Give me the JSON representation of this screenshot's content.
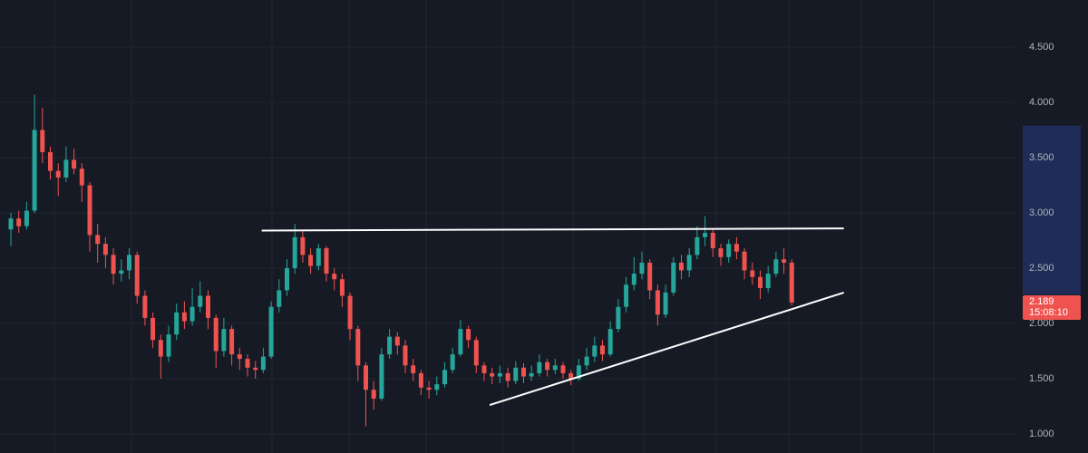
{
  "chart_data": {
    "type": "candlestick",
    "open": [
      2.85,
      2.95,
      2.88,
      3.02,
      3.75,
      3.55,
      3.38,
      3.32,
      3.48,
      3.4,
      3.25,
      2.8,
      2.72,
      2.62,
      2.45,
      2.48,
      2.62,
      2.25,
      2.05,
      1.85,
      1.7,
      1.9,
      2.1,
      2.02,
      2.15,
      2.25,
      2.05,
      1.75,
      1.95,
      1.72,
      1.68,
      1.6,
      1.58,
      1.7,
      2.15,
      2.3,
      2.5,
      2.78,
      2.62,
      2.52,
      2.68,
      2.45,
      2.4,
      2.25,
      1.95,
      1.62,
      1.4,
      1.32,
      1.72,
      1.88,
      1.8,
      1.62,
      1.55,
      1.42,
      1.4,
      1.45,
      1.58,
      1.72,
      1.95,
      1.85,
      1.62,
      1.55,
      1.52,
      1.55,
      1.48,
      1.6,
      1.52,
      1.55,
      1.65,
      1.58,
      1.62,
      1.55,
      1.5,
      1.62,
      1.7,
      1.8,
      1.72,
      1.95,
      2.15,
      2.35,
      2.45,
      2.55,
      2.3,
      2.08,
      2.28,
      2.55,
      2.48,
      2.62,
      2.78,
      2.82,
      2.68,
      2.6,
      2.72,
      2.65,
      2.48,
      2.42,
      2.32,
      2.45,
      2.58,
      2.55
    ],
    "high": [
      3.0,
      3.02,
      3.1,
      4.07,
      3.95,
      3.6,
      3.45,
      3.6,
      3.58,
      3.45,
      3.28,
      2.9,
      2.78,
      2.68,
      2.58,
      2.68,
      2.65,
      2.3,
      2.1,
      1.9,
      1.98,
      2.18,
      2.2,
      2.32,
      2.38,
      2.3,
      2.08,
      2.05,
      1.98,
      1.78,
      1.72,
      1.66,
      1.78,
      2.2,
      2.4,
      2.58,
      2.9,
      2.85,
      2.68,
      2.72,
      2.7,
      2.5,
      2.45,
      2.28,
      1.98,
      1.65,
      1.48,
      1.78,
      1.95,
      1.92,
      1.85,
      1.68,
      1.58,
      1.48,
      1.52,
      1.65,
      1.78,
      2.03,
      1.98,
      1.88,
      1.65,
      1.6,
      1.62,
      1.6,
      1.66,
      1.64,
      1.62,
      1.72,
      1.68,
      1.68,
      1.65,
      1.58,
      1.68,
      1.78,
      1.88,
      1.85,
      2.02,
      2.22,
      2.42,
      2.6,
      2.65,
      2.58,
      2.35,
      2.35,
      2.6,
      2.62,
      2.68,
      2.88,
      2.97,
      2.85,
      2.72,
      2.76,
      2.78,
      2.68,
      2.55,
      2.48,
      2.52,
      2.65,
      2.68,
      2.58
    ],
    "low": [
      2.7,
      2.82,
      2.85,
      3.0,
      3.45,
      3.3,
      3.15,
      3.28,
      3.35,
      3.1,
      2.65,
      2.55,
      2.5,
      2.35,
      2.38,
      2.4,
      2.18,
      1.98,
      1.78,
      1.5,
      1.65,
      1.85,
      1.95,
      1.98,
      2.1,
      1.95,
      1.6,
      1.7,
      1.62,
      1.58,
      1.52,
      1.5,
      1.55,
      1.68,
      2.1,
      2.25,
      2.45,
      2.55,
      2.45,
      2.48,
      2.38,
      2.3,
      2.15,
      1.85,
      1.48,
      1.07,
      1.22,
      1.3,
      1.68,
      1.72,
      1.55,
      1.48,
      1.35,
      1.32,
      1.35,
      1.42,
      1.55,
      1.7,
      1.78,
      1.55,
      1.48,
      1.45,
      1.46,
      1.42,
      1.45,
      1.46,
      1.48,
      1.52,
      1.52,
      1.54,
      1.5,
      1.44,
      1.48,
      1.58,
      1.65,
      1.66,
      1.7,
      1.92,
      2.1,
      2.3,
      2.4,
      2.22,
      1.98,
      2.05,
      2.25,
      2.4,
      2.42,
      2.58,
      2.7,
      2.6,
      2.52,
      2.55,
      2.58,
      2.4,
      2.35,
      2.22,
      2.28,
      2.42,
      2.45,
      2.16
    ],
    "close": [
      2.95,
      2.88,
      3.02,
      3.75,
      3.55,
      3.38,
      3.32,
      3.48,
      3.4,
      3.25,
      2.8,
      2.72,
      2.62,
      2.45,
      2.48,
      2.62,
      2.25,
      2.05,
      1.85,
      1.7,
      1.9,
      2.1,
      2.02,
      2.15,
      2.25,
      2.05,
      1.75,
      1.95,
      1.72,
      1.68,
      1.6,
      1.58,
      1.7,
      2.15,
      2.3,
      2.5,
      2.78,
      2.62,
      2.52,
      2.68,
      2.45,
      2.4,
      2.25,
      1.95,
      1.62,
      1.4,
      1.32,
      1.72,
      1.88,
      1.8,
      1.62,
      1.55,
      1.42,
      1.4,
      1.45,
      1.58,
      1.72,
      1.95,
      1.85,
      1.62,
      1.55,
      1.52,
      1.55,
      1.48,
      1.6,
      1.52,
      1.55,
      1.65,
      1.58,
      1.62,
      1.55,
      1.5,
      1.62,
      1.7,
      1.8,
      1.72,
      1.95,
      2.15,
      2.35,
      2.45,
      2.55,
      2.3,
      2.08,
      2.28,
      2.55,
      2.48,
      2.62,
      2.78,
      2.82,
      2.68,
      2.6,
      2.72,
      2.65,
      2.48,
      2.42,
      2.32,
      2.45,
      2.58,
      2.55,
      2.189
    ],
    "up_color": "#26a69a",
    "down_color": "#ef5350",
    "ylim": [
      0.828,
      4.926
    ],
    "yticks": [
      {
        "value": 1,
        "label": "1.000"
      },
      {
        "value": 1.5,
        "label": "1.500"
      },
      {
        "value": 2,
        "label": "2.000"
      },
      {
        "value": 2.5,
        "label": "2.500"
      },
      {
        "value": 3,
        "label": "3.000"
      },
      {
        "value": 3.5,
        "label": "3.500"
      },
      {
        "value": 4,
        "label": "4.000"
      },
      {
        "value": 4.5,
        "label": "4.500"
      }
    ],
    "grid": true,
    "trendlines": [
      {
        "x": [
          31.8,
          105.6
        ],
        "y": [
          2.84,
          2.86
        ],
        "color": "#ffffff"
      },
      {
        "x": [
          60.7,
          105.6
        ],
        "y": [
          1.262,
          2.279
        ],
        "color": "#ffffff"
      }
    ],
    "highlight_range": [
      2.26,
      3.79
    ],
    "countdown": "15:08:10"
  }
}
